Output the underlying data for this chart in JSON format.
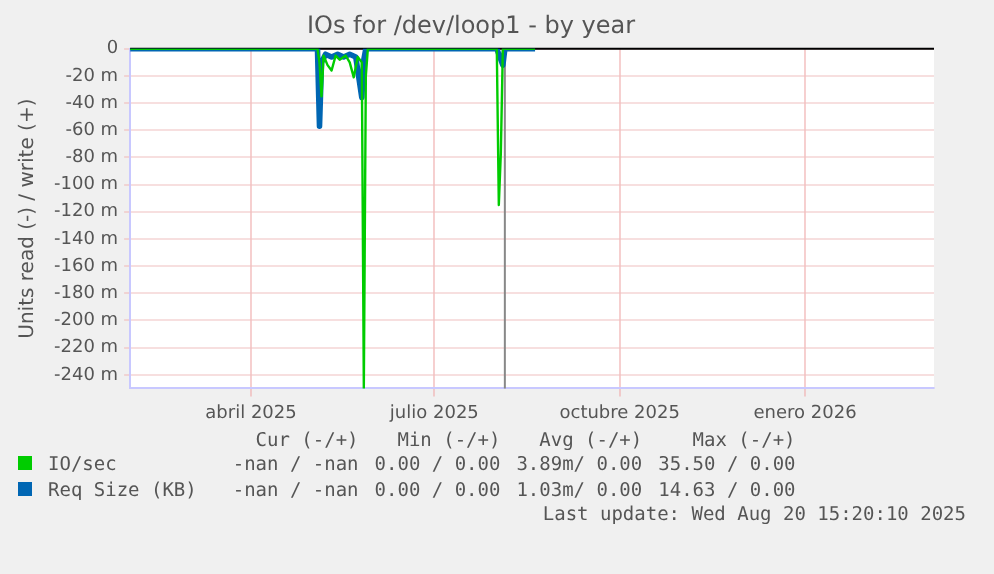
{
  "chart_data": {
    "type": "line",
    "title": "IOs for /dev/loop1 - by year",
    "ylabel": "Units read (-) / write (+)",
    "xlim": [
      "2025-01-31",
      "2026-03-06"
    ],
    "xticks": [
      {
        "value": "2025-04-01",
        "label": "abril 2025"
      },
      {
        "value": "2025-07-01",
        "label": "julio 2025"
      },
      {
        "value": "2025-10-01",
        "label": "octubre 2025"
      },
      {
        "value": "2026-01-01",
        "label": "enero 2026"
      }
    ],
    "ylim": [
      -250,
      0
    ],
    "yticks": [
      0,
      {
        "value": -20,
        "label": "-20 m"
      },
      {
        "value": -40,
        "label": "-40 m"
      },
      {
        "value": -60,
        "label": "-60 m"
      },
      {
        "value": -80,
        "label": "-80 m"
      },
      {
        "value": -100,
        "label": "-100 m"
      },
      {
        "value": -120,
        "label": "-120 m"
      },
      {
        "value": -140,
        "label": "-140 m"
      },
      {
        "value": -160,
        "label": "-160 m"
      },
      {
        "value": -180,
        "label": "-180 m"
      },
      {
        "value": -200,
        "label": "-200 m"
      },
      {
        "value": -220,
        "label": "-220 m"
      },
      {
        "value": -240,
        "label": "-240 m"
      }
    ],
    "grid": true,
    "legend": "bottom",
    "marker": "none",
    "line_style": "solid",
    "series": [
      {
        "name": "IO/sec",
        "color": "#00cc00",
        "x": [
          "2025-01-31",
          "2025-05-04",
          "2025-05-05",
          "2025-05-06",
          "2025-05-07",
          "2025-05-09",
          "2025-05-11",
          "2025-05-13",
          "2025-05-15",
          "2025-05-18",
          "2025-05-20",
          "2025-05-22",
          "2025-05-24",
          "2025-05-26",
          "2025-05-27",
          "2025-05-28",
          "2025-05-29",
          "2025-08-01",
          "2025-08-02",
          "2025-08-03",
          "2025-08-04",
          "2025-08-20"
        ],
        "values": [
          0,
          0,
          -10,
          -35,
          -5,
          -12,
          -16,
          -5,
          -8,
          -5,
          -10,
          -21,
          -6,
          -10,
          -250,
          -20,
          0,
          0,
          -115,
          -77,
          0,
          0
        ]
      },
      {
        "name": "Req Size (KB)",
        "color": "#0066b3",
        "x": [
          "2025-01-31",
          "2025-05-04",
          "2025-05-05",
          "2025-05-06",
          "2025-05-08",
          "2025-05-11",
          "2025-05-14",
          "2025-05-17",
          "2025-05-20",
          "2025-05-23",
          "2025-05-26",
          "2025-05-27",
          "2025-05-28",
          "2025-08-01",
          "2025-08-04",
          "2025-08-05",
          "2025-08-20"
        ],
        "values": [
          0,
          0,
          -57,
          -10,
          -4,
          -6,
          -4,
          -6,
          -4,
          -6,
          -36,
          -8,
          0,
          0,
          -12,
          0,
          0
        ]
      }
    ],
    "ref_lines": [
      {
        "axis": "x",
        "value": "2025-08-05",
        "color": "#888888"
      }
    ],
    "annotations": [
      "Cur (-/+)",
      "Min (-/+)",
      "Avg (-/+)",
      "Max (-/+)",
      "-nan / -nan",
      "0.00 / 0.00",
      "3.89m/ 0.00",
      "35.50 / 0.00",
      "-nan / -nan",
      "0.00 / 0.00",
      "1.03m/ 0.00",
      "14.63 / 0.00",
      "Last update: Wed Aug 20 15:20:10 2025"
    ]
  }
}
